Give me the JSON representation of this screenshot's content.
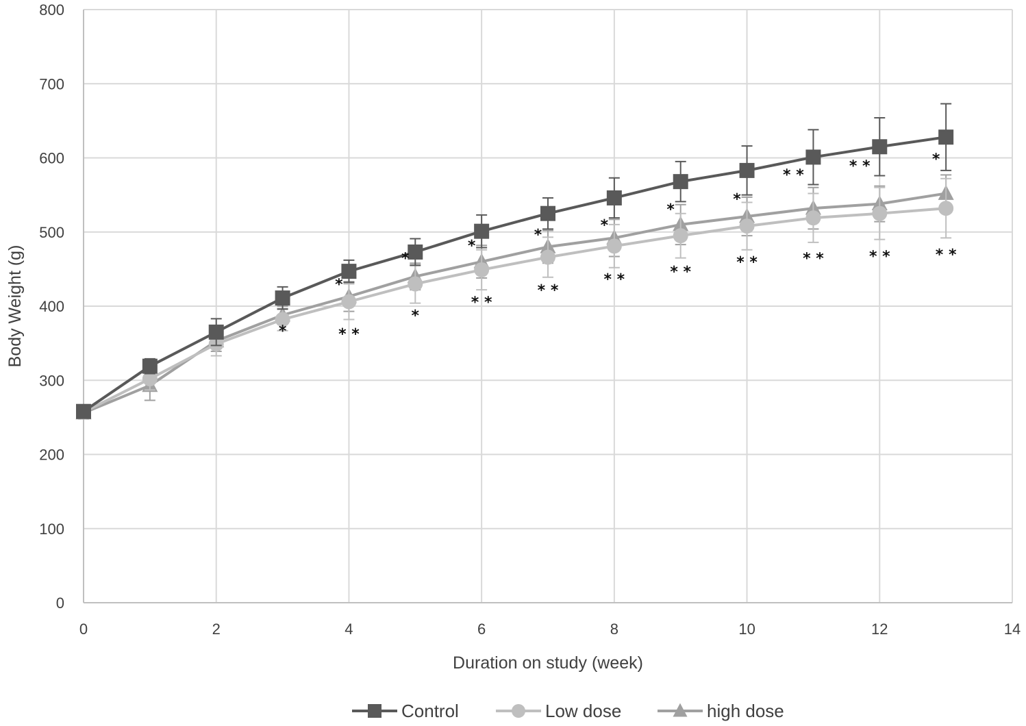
{
  "chart_data": {
    "type": "line",
    "title": "",
    "xlabel": "Duration on study (week)",
    "ylabel": "Body Weight (g)",
    "xlim": [
      0,
      14
    ],
    "ylim": [
      0,
      800
    ],
    "x_ticks": [
      0,
      2,
      4,
      6,
      8,
      10,
      12,
      14
    ],
    "y_ticks": [
      0,
      100,
      200,
      300,
      400,
      500,
      600,
      700,
      800
    ],
    "grid": true,
    "legend_position": "bottom",
    "x": [
      0,
      1,
      2,
      3,
      4,
      5,
      6,
      7,
      8,
      9,
      10,
      11,
      12,
      13
    ],
    "series": [
      {
        "name": "Control",
        "marker": "square",
        "color": "#595959",
        "values": [
          258,
          319,
          365,
          411,
          447,
          473,
          501,
          525,
          546,
          568,
          583,
          601,
          615,
          628
        ],
        "errors": [
          8,
          10,
          18,
          15,
          15,
          18,
          22,
          21,
          27,
          27,
          33,
          37,
          39,
          45
        ]
      },
      {
        "name": "Low dose",
        "marker": "circle",
        "color": "#bfbfbf",
        "values": [
          257,
          302,
          349,
          382,
          406,
          430,
          449,
          466,
          481,
          495,
          508,
          519,
          525,
          532
        ],
        "errors": [
          8,
          15,
          16,
          15,
          24,
          26,
          27,
          27,
          29,
          30,
          32,
          33,
          35,
          40
        ]
      },
      {
        "name": "high dose",
        "marker": "triangle",
        "color": "#a0a0a0",
        "values": [
          256,
          293,
          353,
          388,
          413,
          440,
          460,
          480,
          492,
          510,
          521,
          532,
          538,
          552
        ],
        "errors": [
          8,
          20,
          14,
          12,
          20,
          18,
          22,
          22,
          25,
          27,
          26,
          28,
          24,
          25
        ]
      }
    ],
    "annotations": [
      {
        "x": 3,
        "y": 367,
        "text": "*"
      },
      {
        "x": 3.85,
        "y": 430,
        "text": "*"
      },
      {
        "x": 4,
        "y": 363,
        "text": "* *"
      },
      {
        "x": 4.85,
        "y": 465,
        "text": "*"
      },
      {
        "x": 5,
        "y": 388,
        "text": "*"
      },
      {
        "x": 5.85,
        "y": 482,
        "text": "*"
      },
      {
        "x": 6,
        "y": 406,
        "text": "* *"
      },
      {
        "x": 6.85,
        "y": 497,
        "text": "*"
      },
      {
        "x": 7,
        "y": 422,
        "text": "* *"
      },
      {
        "x": 7.85,
        "y": 510,
        "text": "*"
      },
      {
        "x": 8,
        "y": 437,
        "text": "* *"
      },
      {
        "x": 8.85,
        "y": 531,
        "text": "*"
      },
      {
        "x": 9,
        "y": 447,
        "text": "* *"
      },
      {
        "x": 9.85,
        "y": 545,
        "text": "*"
      },
      {
        "x": 10,
        "y": 460,
        "text": "* *"
      },
      {
        "x": 10.7,
        "y": 578,
        "text": "* *"
      },
      {
        "x": 11,
        "y": 465,
        "text": "* *"
      },
      {
        "x": 11.7,
        "y": 590,
        "text": "* *"
      },
      {
        "x": 12,
        "y": 468,
        "text": "* *"
      },
      {
        "x": 12.85,
        "y": 599,
        "text": "*"
      },
      {
        "x": 13,
        "y": 470,
        "text": "* *"
      }
    ]
  }
}
